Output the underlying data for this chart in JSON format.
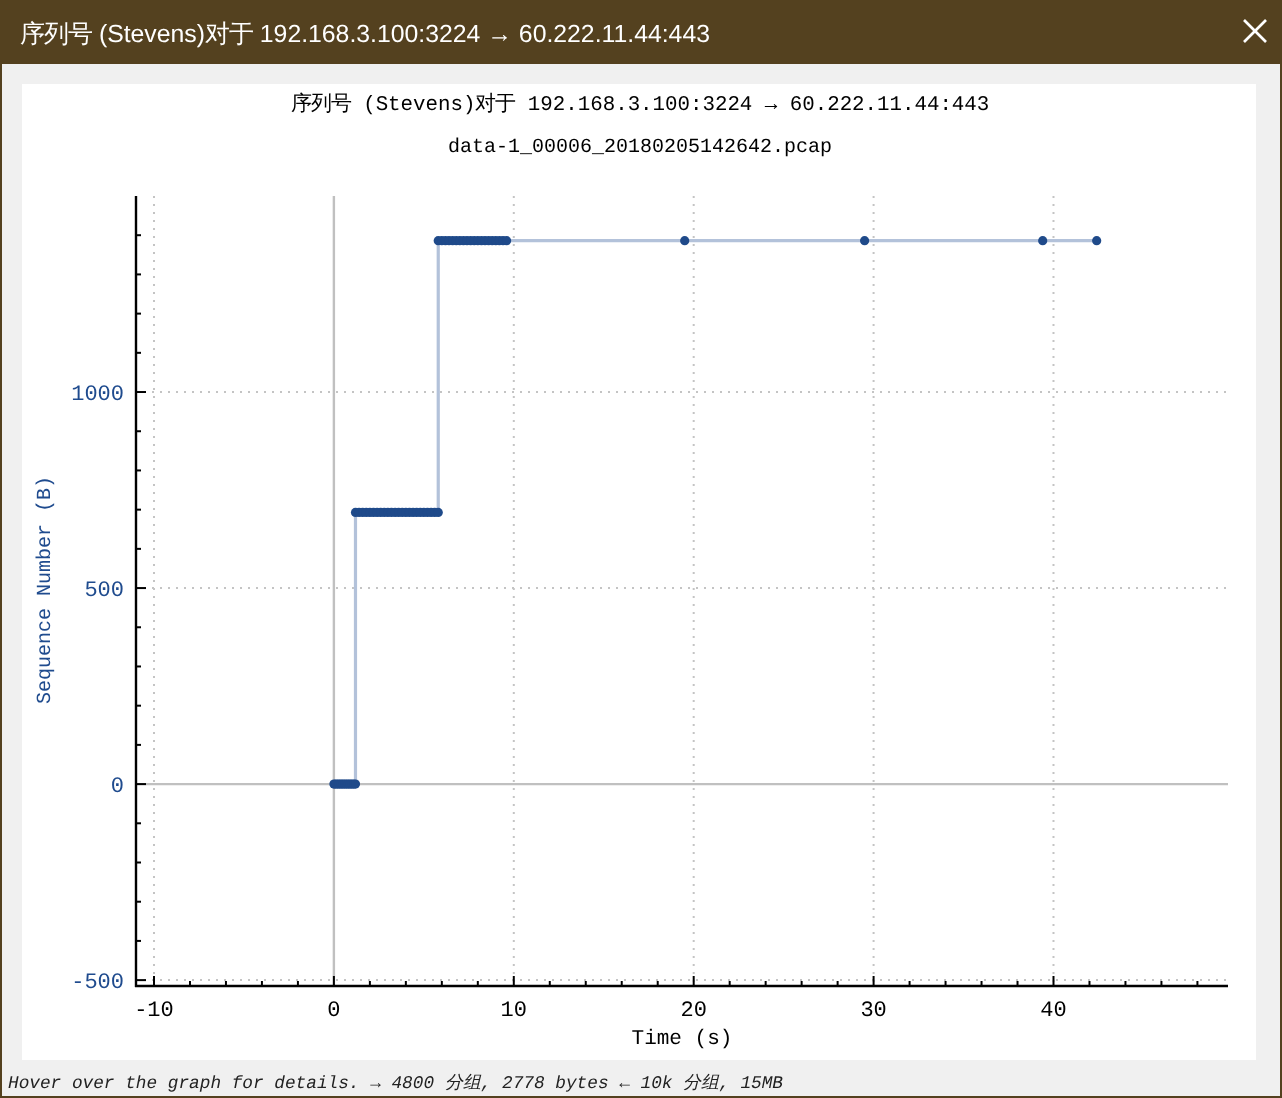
{
  "chart_data": {
    "type": "line",
    "title": "序列号 (Stevens)对于 192.168.3.100:3224 → 60.222.11.44:443",
    "subtitle": "data-1_00006_20180205142642.pcap",
    "xlabel": "Time (s)",
    "ylabel": "Sequence Number (B)",
    "annotations": [
      "Hover over the graph for details. → 4800 分组, 2778 bytes ← 10k 分组, 15MB"
    ],
    "xlim": [
      -11,
      49.7
    ],
    "ylim": [
      -515,
      1500
    ],
    "xticks": [
      -10,
      0,
      10,
      20,
      30,
      40
    ],
    "yticks": [
      -500,
      0,
      500,
      1000
    ],
    "grid": true,
    "series": [
      {
        "color": "#b3c2da",
        "x": [
          0,
          0.1,
          0.2,
          0.3,
          0.4,
          0.5,
          0.6,
          0.7,
          0.8,
          0.9,
          1.0,
          1.1,
          1.2,
          1.2,
          1.4,
          1.6,
          1.8,
          2.0,
          2.2,
          2.4,
          2.6,
          2.8,
          3.0,
          3.2,
          3.4,
          3.6,
          3.8,
          4.0,
          4.2,
          4.4,
          4.6,
          4.8,
          5.0,
          5.2,
          5.4,
          5.6,
          5.8,
          5.8,
          6.0,
          6.2,
          6.4,
          6.6,
          6.8,
          7.0,
          7.2,
          7.4,
          7.6,
          7.8,
          8.0,
          8.2,
          8.4,
          8.6,
          8.8,
          9.0,
          9.2,
          9.4,
          9.6,
          19.5,
          29.5,
          39.4,
          42.4
        ],
        "values": [
          0,
          0,
          0,
          0,
          0,
          0,
          0,
          0,
          0,
          0,
          0,
          0,
          0,
          693,
          693,
          693,
          693,
          693,
          693,
          693,
          693,
          693,
          693,
          693,
          693,
          693,
          693,
          693,
          693,
          693,
          693,
          693,
          693,
          693,
          693,
          693,
          693,
          1386,
          1386,
          1386,
          1386,
          1386,
          1386,
          1386,
          1386,
          1386,
          1386,
          1386,
          1386,
          1386,
          1386,
          1386,
          1386,
          1386,
          1386,
          1386,
          1386,
          1386,
          1386,
          1386,
          1386
        ]
      },
      {
        "type": "scatter",
        "marker": "circle",
        "color": "#1f4a8a",
        "x": [
          0,
          0.1,
          0.2,
          0.3,
          0.4,
          0.5,
          0.6,
          0.7,
          0.8,
          0.9,
          1.0,
          1.1,
          1.2,
          1.2,
          1.4,
          1.6,
          1.8,
          2.0,
          2.2,
          2.4,
          2.6,
          2.8,
          3.0,
          3.2,
          3.4,
          3.6,
          3.8,
          4.0,
          4.2,
          4.4,
          4.6,
          4.8,
          5.0,
          5.2,
          5.4,
          5.6,
          5.8,
          5.8,
          6.0,
          6.2,
          6.4,
          6.6,
          6.8,
          7.0,
          7.2,
          7.4,
          7.6,
          7.8,
          8.0,
          8.2,
          8.4,
          8.6,
          8.8,
          9.0,
          9.2,
          9.4,
          9.6,
          19.5,
          29.5,
          39.4,
          42.4
        ],
        "values": [
          0,
          0,
          0,
          0,
          0,
          0,
          0,
          0,
          0,
          0,
          0,
          0,
          0,
          693,
          693,
          693,
          693,
          693,
          693,
          693,
          693,
          693,
          693,
          693,
          693,
          693,
          693,
          693,
          693,
          693,
          693,
          693,
          693,
          693,
          693,
          693,
          693,
          1386,
          1386,
          1386,
          1386,
          1386,
          1386,
          1386,
          1386,
          1386,
          1386,
          1386,
          1386,
          1386,
          1386,
          1386,
          1386,
          1386,
          1386,
          1386,
          1386,
          1386,
          1386,
          1386,
          1386
        ]
      }
    ]
  }
}
